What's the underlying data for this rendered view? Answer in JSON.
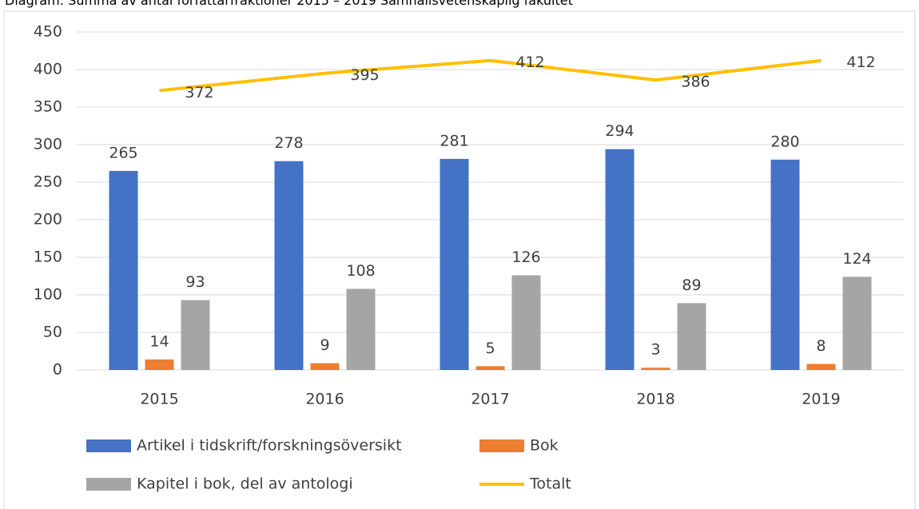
{
  "chart_data": {
    "type": "bar",
    "title": "Diagram: Summa av antal författarfraktioner 2015 – 2019 Samhällsvetenskaplig fakultet",
    "categories": [
      "2015",
      "2016",
      "2017",
      "2018",
      "2019"
    ],
    "series": [
      {
        "name": "Artikel i tidskrift/forskningsöversikt",
        "color": "#4472c4",
        "values": [
          265,
          278,
          281,
          294,
          280
        ]
      },
      {
        "name": "Bok",
        "color": "#ed7d31",
        "values": [
          14,
          9,
          5,
          3,
          8
        ]
      },
      {
        "name": "Kapitel i bok, del av antologi",
        "color": "#a5a5a5",
        "values": [
          93,
          108,
          126,
          89,
          124
        ]
      },
      {
        "name": "Totalt",
        "color": "#ffc000",
        "type": "line",
        "values": [
          372,
          395,
          412,
          386,
          412
        ]
      }
    ],
    "ylim": [
      0,
      450
    ],
    "yticks": [
      0,
      50,
      100,
      150,
      200,
      250,
      300,
      350,
      400,
      450
    ],
    "grid": true,
    "legend": "bottom"
  }
}
